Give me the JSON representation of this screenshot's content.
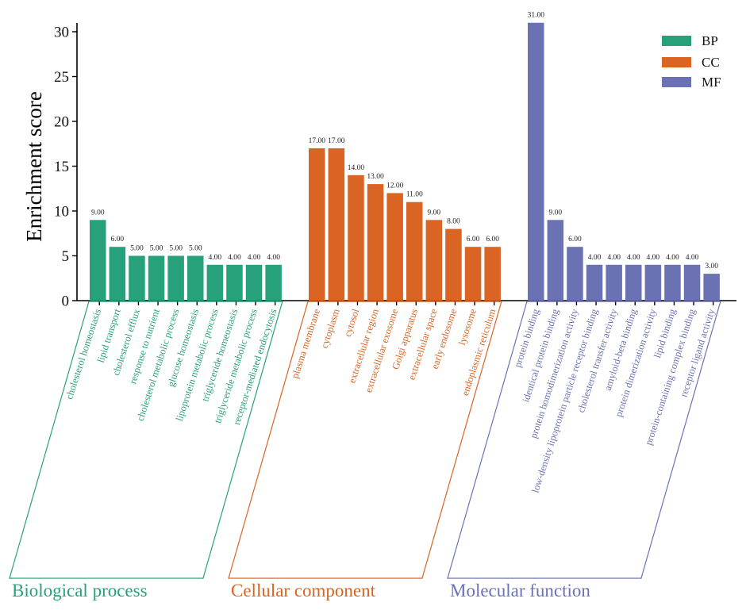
{
  "chart_data": {
    "type": "bar",
    "title": "",
    "xlabel": "",
    "ylabel": "Enrichment score",
    "ylim": [
      0,
      31
    ],
    "yticks": [
      0,
      5,
      10,
      15,
      20,
      25,
      30
    ],
    "grid": false,
    "legend": {
      "placement": "top-right",
      "entries": [
        {
          "name": "BP",
          "color": "#27a17b"
        },
        {
          "name": "CC",
          "color": "#d96424"
        },
        {
          "name": "MF",
          "color": "#6b72b3"
        }
      ]
    },
    "groups": [
      {
        "key": "BP",
        "label": "Biological process",
        "color": "#27a17b",
        "categories": [
          "cholesterol homeostasis",
          "lipid transport",
          "cholesterol efflux",
          "response to nutrient",
          "cholesterol metabolic process",
          "glucose homeostasis",
          "lipoprotein metabolic process",
          "triglyceride homeostasis",
          "triglyceride metabolic process",
          "receptor-mediated endocytosis"
        ],
        "values": [
          9,
          6,
          5,
          5,
          5,
          5,
          4,
          4,
          4,
          4
        ],
        "value_labels": [
          "9.00",
          "6.00",
          "5.00",
          "5.00",
          "5.00",
          "5.00",
          "4.00",
          "4.00",
          "4.00",
          "4.00"
        ]
      },
      {
        "key": "CC",
        "label": "Cellular component",
        "color": "#d96424",
        "categories": [
          "plasma membrane",
          "cytoplasm",
          "cytosol",
          "extracellular region",
          "extracellular exosome",
          "Golgi apparatus",
          "extracellular space",
          "early endosome",
          "lysosome",
          "endoplasmic reticulum"
        ],
        "values": [
          17,
          17,
          14,
          13,
          12,
          11,
          9,
          8,
          6,
          6
        ],
        "value_labels": [
          "17.00",
          "17.00",
          "14.00",
          "13.00",
          "12.00",
          "11.00",
          "9.00",
          "8.00",
          "6.00",
          "6.00"
        ]
      },
      {
        "key": "MF",
        "label": "Molecular function",
        "color": "#6b72b3",
        "categories": [
          "protein binding",
          "identical protein binding",
          "protein homodimerization activity",
          "low-density lipoprotein particle receptor binding",
          "cholesterol transfer activity",
          "amyloid-beta binding",
          "protein dimerization activity",
          "lipid binding",
          "protein-containing complex binding",
          "receptor ligand activity"
        ],
        "values": [
          31,
          9,
          6,
          4,
          4,
          4,
          4,
          4,
          4,
          3
        ],
        "value_labels": [
          "31.00",
          "9.00",
          "6.00",
          "4.00",
          "4.00",
          "4.00",
          "4.00",
          "4.00",
          "4.00",
          "3.00"
        ]
      }
    ]
  }
}
